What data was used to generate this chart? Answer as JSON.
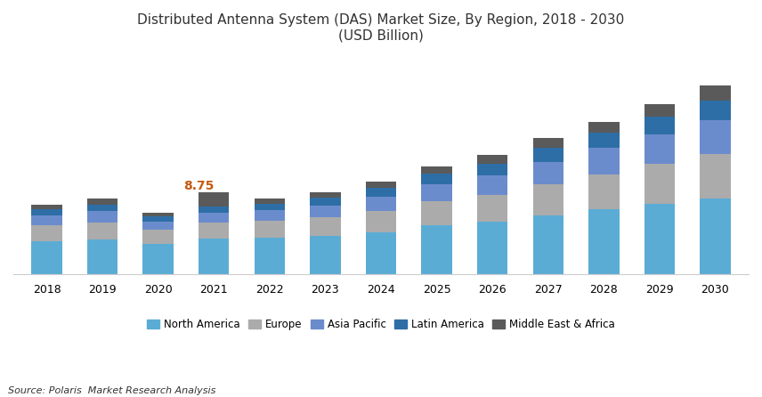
{
  "title_line1": "Distributed Antenna System (DAS) Market Size, By Region, 2018 - 2030",
  "title_line2": "(USD Billion)",
  "years": [
    2018,
    2019,
    2020,
    2021,
    2022,
    2023,
    2024,
    2025,
    2026,
    2027,
    2028,
    2029,
    2030
  ],
  "segments": {
    "North America": {
      "color": "#5BACD4",
      "values": [
        3.5,
        3.7,
        3.2,
        3.8,
        3.9,
        4.1,
        4.5,
        5.2,
        5.6,
        6.3,
        6.9,
        7.5,
        8.1
      ]
    },
    "Europe": {
      "color": "#ABABAB",
      "values": [
        1.7,
        1.8,
        1.5,
        1.7,
        1.8,
        1.95,
        2.2,
        2.6,
        2.9,
        3.3,
        3.8,
        4.3,
        4.8
      ]
    },
    "Asia Pacific": {
      "color": "#6B8CCC",
      "values": [
        1.1,
        1.2,
        0.9,
        1.05,
        1.15,
        1.3,
        1.55,
        1.85,
        2.1,
        2.45,
        2.8,
        3.2,
        3.6
      ]
    },
    "Latin America": {
      "color": "#2E6EA6",
      "values": [
        0.6,
        0.7,
        0.55,
        0.65,
        0.7,
        0.8,
        0.95,
        1.1,
        1.25,
        1.45,
        1.65,
        1.9,
        2.15
      ]
    },
    "Middle East & Africa": {
      "color": "#5A5A5A",
      "values": [
        0.5,
        0.65,
        0.45,
        1.55,
        0.55,
        0.6,
        0.7,
        0.8,
        0.95,
        1.05,
        1.2,
        1.35,
        1.55
      ]
    }
  },
  "annotation_year": 2021,
  "annotation_text": "8.75",
  "annotation_color": "#C45911",
  "background_color": "#FFFFFF",
  "source_text": "Source: Polaris  Market Research Analysis",
  "bar_width": 0.55,
  "ylim_max": 22.5,
  "legend_labels": [
    "North America",
    "Europe",
    "Asia Pacific",
    "Latin America",
    "Middle East & Africa"
  ]
}
